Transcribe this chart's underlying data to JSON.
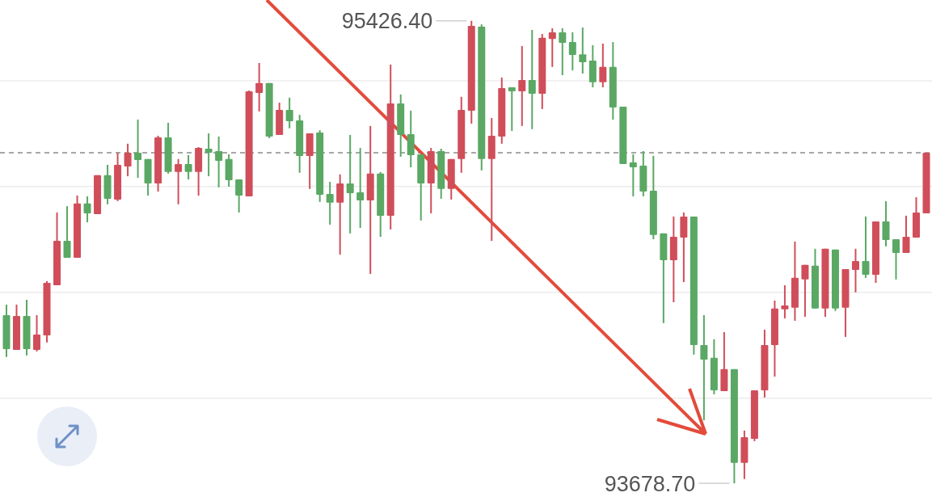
{
  "chart_data": {
    "type": "candlestick",
    "categories": [
      null,
      null,
      null,
      null,
      null,
      null,
      null,
      null,
      null,
      null,
      null,
      null,
      null,
      null,
      null,
      null,
      null,
      null,
      null,
      null,
      null,
      null,
      null,
      null,
      null,
      null,
      null,
      null,
      null,
      null,
      null,
      null,
      null,
      null,
      null,
      null,
      null,
      null,
      null,
      null,
      null,
      null,
      null,
      null,
      null,
      null,
      null,
      null,
      null,
      null,
      null,
      null,
      null,
      null,
      null,
      null,
      null,
      null,
      null,
      null,
      null,
      null,
      null,
      null,
      null,
      null,
      null,
      null,
      null,
      null,
      null,
      null,
      null,
      null,
      null,
      null,
      null,
      null,
      null,
      null,
      null,
      null,
      null,
      null,
      null,
      null,
      null,
      null,
      null,
      null,
      null,
      null
    ],
    "ohlc": [
      [
        94314,
        94354,
        94156,
        94186
      ],
      [
        94183,
        94354,
        94183,
        94311
      ],
      [
        94311,
        94372,
        94162,
        94186
      ],
      [
        94183,
        94314,
        94177,
        94241
      ],
      [
        94238,
        94443,
        94211,
        94436
      ],
      [
        94427,
        94702,
        94427,
        94595
      ],
      [
        94595,
        94726,
        94531,
        94531
      ],
      [
        94531,
        94766,
        94531,
        94736
      ],
      [
        94736,
        94763,
        94665,
        94699
      ],
      [
        94696,
        94843,
        94696,
        94843
      ],
      [
        94843,
        94882,
        94733,
        94754
      ],
      [
        94751,
        94928,
        94745,
        94882
      ],
      [
        94876,
        94962,
        94839,
        94928
      ],
      [
        94928,
        95053,
        94833,
        94900
      ],
      [
        94904,
        94904,
        94766,
        94812
      ],
      [
        94812,
        94992,
        94781,
        94986
      ],
      [
        94986,
        95041,
        94849,
        94855
      ],
      [
        94855,
        94904,
        94733,
        94885
      ],
      [
        94885,
        94919,
        94827,
        94855
      ],
      [
        94855,
        94949,
        94766,
        94946
      ],
      [
        94943,
        95001,
        94839,
        94928
      ],
      [
        94934,
        94989,
        94797,
        94897
      ],
      [
        94904,
        94922,
        94800,
        94824
      ],
      [
        94827,
        94827,
        94702,
        94766
      ],
      [
        94763,
        95163,
        94763,
        95160
      ],
      [
        95154,
        95267,
        95084,
        95191
      ],
      [
        95191,
        95191,
        94983,
        94989
      ],
      [
        94995,
        95117,
        94995,
        95090
      ],
      [
        95090,
        95136,
        95020,
        95047
      ],
      [
        95050,
        95071,
        94852,
        94916
      ],
      [
        94916,
        95001,
        94791,
        95001
      ],
      [
        95004,
        95013,
        94742,
        94769
      ],
      [
        94772,
        94818,
        94656,
        94739
      ],
      [
        94739,
        94846,
        94543,
        94812
      ],
      [
        94812,
        94995,
        94623,
        94775
      ],
      [
        94778,
        94946,
        94644,
        94748
      ],
      [
        94748,
        95029,
        94470,
        94849
      ],
      [
        94849,
        94855,
        94610,
        94690
      ],
      [
        94690,
        95261,
        94638,
        95114
      ],
      [
        95114,
        95148,
        94913,
        94995
      ],
      [
        94998,
        95087,
        94873,
        94919
      ],
      [
        94922,
        94922,
        94672,
        94812
      ],
      [
        94812,
        94946,
        94699,
        94934
      ],
      [
        94934,
        94943,
        94754,
        94791
      ],
      [
        94791,
        94904,
        94751,
        94904
      ],
      [
        94904,
        95139,
        94852,
        95090
      ],
      [
        95087,
        95426.4,
        95038,
        95407
      ],
      [
        95404,
        95413,
        94861,
        94904
      ],
      [
        94904,
        95059,
        94595,
        94992
      ],
      [
        94989,
        95212,
        94962,
        95172
      ],
      [
        95175,
        95175,
        95010,
        95160
      ],
      [
        95160,
        95331,
        95029,
        95203
      ],
      [
        95203,
        95392,
        95017,
        95151
      ],
      [
        95151,
        95377,
        95093,
        95362
      ],
      [
        95358,
        95398,
        95252,
        95383
      ],
      [
        95383,
        95398,
        95221,
        95343
      ],
      [
        95346,
        95383,
        95239,
        95297
      ],
      [
        95300,
        95401,
        95227,
        95270
      ],
      [
        95276,
        95334,
        95175,
        95194
      ],
      [
        95194,
        95340,
        95175,
        95252
      ],
      [
        95252,
        95346,
        95053,
        95099
      ],
      [
        95102,
        95102,
        94885,
        94885
      ],
      [
        94891,
        94922,
        94763,
        94873
      ],
      [
        94879,
        94934,
        94763,
        94781
      ],
      [
        94784,
        94916,
        94601,
        94617
      ],
      [
        94623,
        94623,
        94284,
        94522
      ],
      [
        94522,
        94687,
        94363,
        94610
      ],
      [
        94607,
        94702,
        94439,
        94687
      ],
      [
        94687,
        94687,
        94165,
        94201
      ],
      [
        94201,
        94314,
        93917,
        94146
      ],
      [
        94153,
        94223,
        94015,
        94030
      ],
      [
        94027,
        94250,
        94027,
        94110
      ],
      [
        94110,
        94110,
        93678.7,
        93756
      ],
      [
        93756,
        93878,
        93695,
        93853
      ],
      [
        93847,
        94030,
        93838,
        94030
      ],
      [
        94030,
        94259,
        94003,
        94201
      ],
      [
        94201,
        94369,
        94082,
        94339
      ],
      [
        94336,
        94427,
        94302,
        94351
      ],
      [
        94342,
        94592,
        94293,
        94455
      ],
      [
        94449,
        94504,
        94308,
        94504
      ],
      [
        94501,
        94565,
        94339,
        94339
      ],
      [
        94339,
        94565,
        94308,
        94565
      ],
      [
        94562,
        94562,
        94330,
        94339
      ],
      [
        94342,
        94488,
        94232,
        94488
      ],
      [
        94485,
        94565,
        94400,
        94519
      ],
      [
        94519,
        94687,
        94455,
        94467
      ],
      [
        94467,
        94668,
        94436,
        94668
      ],
      [
        94668,
        94745,
        94574,
        94598
      ],
      [
        94601,
        94601,
        94449,
        94549
      ],
      [
        94549,
        94690,
        94549,
        94610
      ],
      [
        94607,
        94760,
        94607,
        94702
      ],
      [
        94699,
        94928,
        94699,
        94928
      ]
    ],
    "colors": [
      "#5aa864",
      "#d04e5a",
      "#5aa864",
      "#d04e5a",
      "#d04e5a",
      "#d04e5a",
      "#5aa864",
      "#d04e5a",
      "#5aa864",
      "#d04e5a",
      "#5aa864",
      "#d04e5a",
      "#d04e5a",
      "#5aa864",
      "#5aa864",
      "#d04e5a",
      "#5aa864",
      "#d04e5a",
      "#5aa864",
      "#d04e5a",
      "#5aa864",
      "#5aa864",
      "#5aa864",
      "#5aa864",
      "#d04e5a",
      "#d04e5a",
      "#5aa864",
      "#d04e5a",
      "#5aa864",
      "#5aa864",
      "#d04e5a",
      "#5aa864",
      "#5aa864",
      "#d04e5a",
      "#5aa864",
      "#5aa864",
      "#d04e5a",
      "#5aa864",
      "#d04e5a",
      "#5aa864",
      "#5aa864",
      "#5aa864",
      "#d04e5a",
      "#5aa864",
      "#d04e5a",
      "#d04e5a",
      "#d04e5a",
      "#5aa864",
      "#d04e5a",
      "#d04e5a",
      "#5aa864",
      "#d04e5a",
      "#5aa864",
      "#d04e5a",
      "#d04e5a",
      "#5aa864",
      "#5aa864",
      "#5aa864",
      "#5aa864",
      "#d04e5a",
      "#5aa864",
      "#5aa864",
      "#5aa864",
      "#5aa864",
      "#5aa864",
      "#5aa864",
      "#d04e5a",
      "#d04e5a",
      "#5aa864",
      "#5aa864",
      "#5aa864",
      "#d04e5a",
      "#5aa864",
      "#d04e5a",
      "#d04e5a",
      "#d04e5a",
      "#d04e5a",
      "#d04e5a",
      "#d04e5a",
      "#d04e5a",
      "#5aa864",
      "#d04e5a",
      "#5aa864",
      "#d04e5a",
      "#d04e5a",
      "#5aa864",
      "#d04e5a",
      "#5aa864",
      "#5aa864",
      "#d04e5a",
      "#d04e5a",
      "#d04e5a"
    ],
    "ylim": [
      93627,
      95505
    ],
    "yticks": [
      {
        "value": 94000,
        "label": null
      },
      {
        "value": 94400,
        "label": null
      },
      {
        "value": 94800,
        "label": null
      },
      {
        "value": 95200,
        "label": null
      }
    ],
    "grid": "y",
    "ref_lines": [
      {
        "axis": "y",
        "value": 94928,
        "color": "#8a8a8a",
        "line_style": "dashed"
      }
    ],
    "annotations": [
      "95426.40",
      "93678.70"
    ]
  }
}
